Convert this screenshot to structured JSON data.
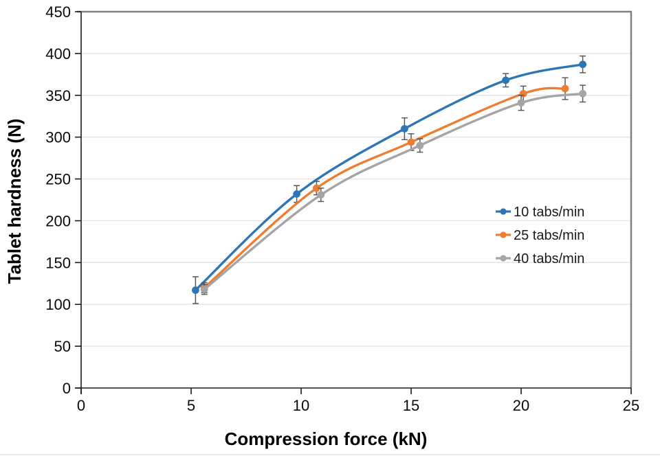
{
  "chart_data": {
    "type": "line",
    "title": "",
    "xlabel": "Compression force (kN)",
    "ylabel": "Tablet hardness (N)",
    "xlim": [
      0,
      25
    ],
    "ylim": [
      0,
      450
    ],
    "xticks": [
      0,
      5,
      10,
      15,
      20,
      25
    ],
    "yticks": [
      0,
      50,
      100,
      150,
      200,
      250,
      300,
      350,
      400,
      450
    ],
    "grid": "horizontal-light",
    "line_style": "smoothed-with-markers-and-error-bars",
    "legend_position": "inside-right-middle",
    "series": [
      {
        "name": "10 tabs/min",
        "color": "#2E75B6",
        "x": [
          5.2,
          9.8,
          14.7,
          19.3,
          22.8
        ],
        "y": [
          117,
          232,
          310,
          368,
          387
        ],
        "yerr": [
          16,
          10,
          13,
          8,
          10
        ]
      },
      {
        "name": "25 tabs/min",
        "color": "#ED7D31",
        "x": [
          5.6,
          10.7,
          15.0,
          20.1,
          22.0
        ],
        "y": [
          120,
          239,
          294,
          352,
          358
        ],
        "yerr": [
          6,
          8,
          10,
          9,
          13
        ]
      },
      {
        "name": "40 tabs/min",
        "color": "#A5A5A5",
        "x": [
          5.6,
          10.9,
          15.4,
          20.0,
          22.8
        ],
        "y": [
          118,
          231,
          290,
          341,
          352
        ],
        "yerr": [
          6,
          8,
          8,
          9,
          10
        ]
      }
    ],
    "colors": {
      "gridline": "#E3E3E3",
      "plot_border": "#808080",
      "axis_line": "#1a1a1a",
      "error_bar": "#595959",
      "tick_text": "#0a0a0a",
      "legend_text": "#1a1a1a",
      "background": "#ffffff",
      "bottom_edge_line": "#DCDCDC"
    }
  }
}
